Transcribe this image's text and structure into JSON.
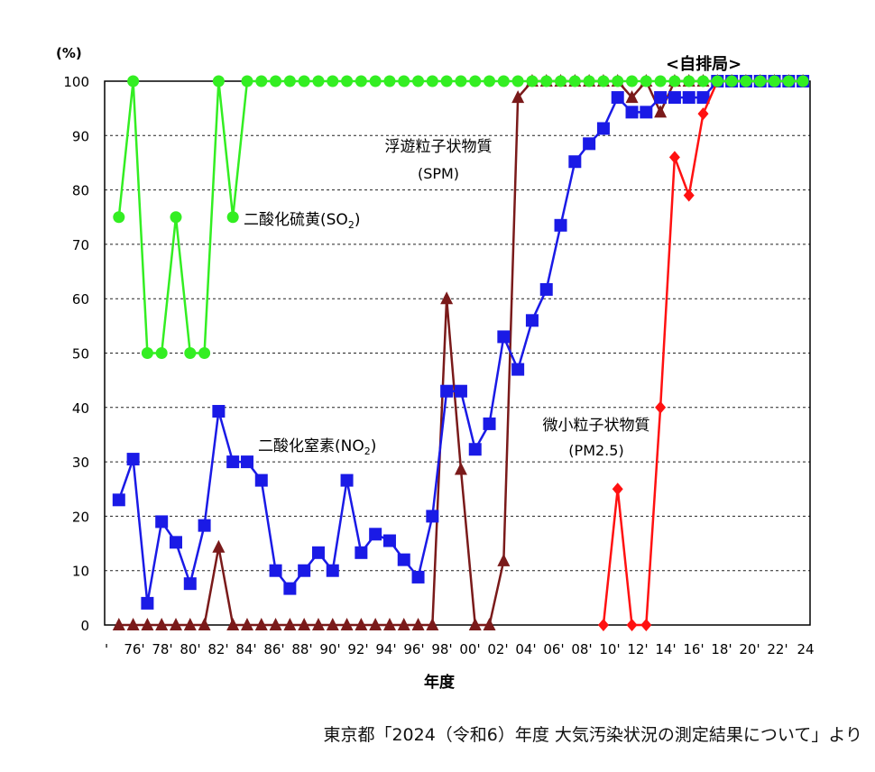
{
  "chart_data": {
    "type": "line",
    "ylabel": "(%)",
    "xlabel": "年度",
    "panel_label": "<自排局>",
    "ylim": [
      0,
      100
    ],
    "yticks": [
      0,
      10,
      20,
      30,
      40,
      50,
      60,
      70,
      80,
      90,
      100
    ],
    "x": [
      1976,
      1977,
      1978,
      1979,
      1980,
      1981,
      1982,
      1983,
      1984,
      1985,
      1986,
      1987,
      1988,
      1989,
      1990,
      1991,
      1992,
      1993,
      1994,
      1995,
      1996,
      1997,
      1998,
      1999,
      2000,
      2001,
      2002,
      2003,
      2004,
      2005,
      2006,
      2007,
      2008,
      2009,
      2010,
      2011,
      2012,
      2013,
      2014,
      2015,
      2016,
      2017,
      2018,
      2019,
      2020,
      2021,
      2022,
      2023,
      2024
    ],
    "xtick_labels": [
      "'",
      "76'",
      "78'",
      "80'",
      "82'",
      "84'",
      "86'",
      "88'",
      "90'",
      "92'",
      "94'",
      "96'",
      "98'",
      "00'",
      "02'",
      "04'",
      "06'",
      "08'",
      "10'",
      "12'",
      "14'",
      "16'",
      "18'",
      "20'",
      "22'",
      "24"
    ],
    "grid": true,
    "series": [
      {
        "name": "二酸化硫黄(SO2)",
        "color": "#33ee22",
        "marker": "circle",
        "x": [
          1976,
          1977,
          1978,
          1979,
          1980,
          1981,
          1982,
          1983,
          1984,
          1985,
          1986,
          1987,
          1988,
          1989,
          1990,
          1991,
          1992,
          1993,
          1994,
          1995,
          1996,
          1997,
          1998,
          1999,
          2000,
          2001,
          2002,
          2003,
          2004,
          2005,
          2006,
          2007,
          2008,
          2009,
          2010,
          2011,
          2012,
          2013,
          2014,
          2015,
          2016,
          2017,
          2018,
          2019,
          2020,
          2021,
          2022,
          2023,
          2024
        ],
        "values": [
          75,
          100,
          50,
          50,
          75,
          50,
          50,
          100,
          75,
          100,
          100,
          100,
          100,
          100,
          100,
          100,
          100,
          100,
          100,
          100,
          100,
          100,
          100,
          100,
          100,
          100,
          100,
          100,
          100,
          100,
          100,
          100,
          100,
          100,
          100,
          100,
          100,
          100,
          100,
          100,
          100,
          100,
          100,
          100,
          100,
          100,
          100,
          100,
          100
        ]
      },
      {
        "name": "二酸化窒素(NO2)",
        "color": "#1a1ae6",
        "marker": "square",
        "x": [
          1976,
          1977,
          1978,
          1979,
          1980,
          1981,
          1982,
          1983,
          1984,
          1985,
          1986,
          1987,
          1988,
          1989,
          1990,
          1991,
          1992,
          1993,
          1994,
          1995,
          1996,
          1997,
          1998,
          1999,
          2000,
          2001,
          2002,
          2003,
          2004,
          2005,
          2006,
          2007,
          2008,
          2009,
          2010,
          2011,
          2012,
          2013,
          2014,
          2015,
          2016,
          2017,
          2018,
          2019,
          2020,
          2021,
          2022,
          2023,
          2024
        ],
        "values": [
          23,
          30.5,
          4,
          19,
          15.2,
          7.6,
          18.3,
          39.3,
          30,
          30,
          26.6,
          10,
          6.7,
          10,
          13.3,
          10,
          26.6,
          13.3,
          16.7,
          15.5,
          12,
          8.8,
          20,
          43,
          43,
          32.3,
          37,
          53,
          47,
          56,
          61.7,
          73.5,
          85.2,
          88.5,
          91.3,
          97,
          94.3,
          94.3,
          97,
          97,
          97,
          97,
          100,
          100,
          100,
          100,
          100,
          100,
          100
        ]
      },
      {
        "name": "浮遊粒子状物質(SPM)",
        "color": "#7a1a1a",
        "marker": "triangle",
        "x": [
          1976,
          1977,
          1978,
          1979,
          1980,
          1981,
          1982,
          1983,
          1984,
          1985,
          1986,
          1987,
          1988,
          1989,
          1990,
          1991,
          1992,
          1993,
          1994,
          1995,
          1996,
          1997,
          1998,
          1999,
          2000,
          2001,
          2002,
          2003,
          2004,
          2005,
          2006,
          2007,
          2008,
          2009,
          2010,
          2011,
          2012,
          2013,
          2014,
          2015,
          2016,
          2017,
          2018,
          2019,
          2020,
          2021,
          2022,
          2023,
          2024
        ],
        "values": [
          0,
          0,
          0,
          0,
          0,
          0,
          0,
          14.3,
          0,
          0,
          0,
          0,
          0,
          0,
          0,
          0,
          0,
          0,
          0,
          0,
          0,
          0,
          0,
          60,
          28.6,
          0,
          0,
          11.8,
          97,
          100,
          100,
          100,
          100,
          100,
          100,
          100,
          97,
          100,
          94.3,
          100,
          100,
          100,
          100,
          100,
          100,
          100,
          100,
          100,
          100
        ]
      },
      {
        "name": "微小粒子状物質(PM2.5)",
        "color": "#ff1111",
        "marker": "diamond",
        "x": [
          2010,
          2011,
          2012,
          2013,
          2014,
          2015,
          2016,
          2017,
          2018,
          2019,
          2020,
          2021,
          2022,
          2023,
          2024
        ],
        "values": [
          0,
          25,
          0,
          0,
          40,
          86,
          79,
          94,
          100,
          100,
          100,
          100,
          100,
          100,
          100
        ]
      }
    ],
    "annotations": [
      {
        "id": "so2",
        "text": "二酸化硫黄(SO",
        "sub": "2",
        "close": ")"
      },
      {
        "id": "no2",
        "text": "二酸化窒素(NO",
        "sub": "2",
        "close": ")"
      },
      {
        "id": "spm1",
        "text": "浮遊粒子状物質"
      },
      {
        "id": "spm2",
        "text": "(SPM)"
      },
      {
        "id": "pm1",
        "text": "微小粒子状物質"
      },
      {
        "id": "pm2",
        "text": "(PM2.5)"
      }
    ]
  },
  "source": "東京都「2024（令和6）年度 大気汚染状況の測定結果について」より"
}
